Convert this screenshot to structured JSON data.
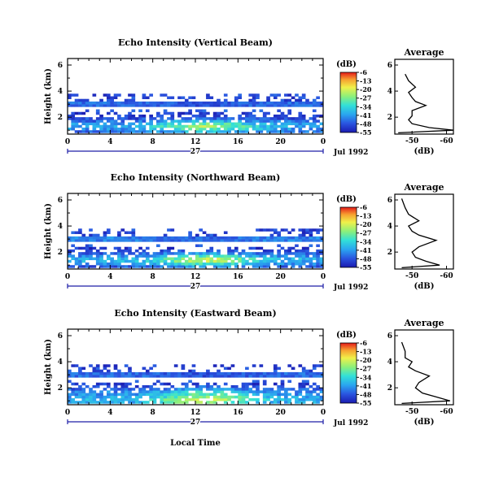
{
  "chart_data": {
    "type": "heatmap",
    "date_label": "Jul 1992",
    "xlabel_bottom": "Local Time",
    "day_label": "27",
    "x_ticks": [
      "0",
      "4",
      "8",
      "12",
      "16",
      "20",
      "0"
    ],
    "x_range": [
      0,
      24
    ],
    "y_ticks": [
      "2",
      "4",
      "6"
    ],
    "y_range": [
      0.7,
      6.5
    ],
    "ylabel": "Height (km)",
    "colorbar": {
      "unit_label": "(dB)",
      "ticks": [
        "-6",
        "-13",
        "-20",
        "-27",
        "-34",
        "-41",
        "-48",
        "-55"
      ],
      "range": [
        -55,
        -6
      ]
    },
    "profile": {
      "title": "Average",
      "xlabel": "(dB)",
      "x_ticks": [
        "-50",
        "-60"
      ],
      "y_ticks": [
        "2",
        "4",
        "6"
      ],
      "x_range": [
        -45,
        -62
      ]
    },
    "panels": [
      {
        "title": "Echo Intensity (Vertical Beam)",
        "layers": [
          {
            "height": 2.85,
            "level": -46
          },
          {
            "height": 1.2,
            "level": -30
          }
        ],
        "profile": [
          {
            "height": 0.8,
            "dB": -46
          },
          {
            "height": 1.0,
            "dB": -62
          },
          {
            "height": 1.2,
            "dB": -55
          },
          {
            "height": 1.5,
            "dB": -50
          },
          {
            "height": 1.8,
            "dB": -49
          },
          {
            "height": 2.1,
            "dB": -50
          },
          {
            "height": 2.5,
            "dB": -50
          },
          {
            "height": 2.9,
            "dB": -54
          },
          {
            "height": 3.2,
            "dB": -51
          },
          {
            "height": 3.5,
            "dB": -50
          },
          {
            "height": 3.9,
            "dB": -49
          },
          {
            "height": 4.3,
            "dB": -51
          },
          {
            "height": 4.8,
            "dB": -49
          },
          {
            "height": 5.3,
            "dB": -48
          }
        ]
      },
      {
        "title": "Echo Intensity (Northward Beam)",
        "layers": [
          {
            "height": 2.85,
            "level": -44
          },
          {
            "height": 1.3,
            "level": -28
          }
        ],
        "profile": [
          {
            "height": 0.8,
            "dB": -47
          },
          {
            "height": 1.0,
            "dB": -58
          },
          {
            "height": 1.3,
            "dB": -54
          },
          {
            "height": 1.6,
            "dB": -51
          },
          {
            "height": 2.0,
            "dB": -50
          },
          {
            "height": 2.4,
            "dB": -52
          },
          {
            "height": 2.9,
            "dB": -57
          },
          {
            "height": 3.3,
            "dB": -52
          },
          {
            "height": 3.6,
            "dB": -50
          },
          {
            "height": 4.0,
            "dB": -49
          },
          {
            "height": 4.4,
            "dB": -52
          },
          {
            "height": 4.9,
            "dB": -49
          },
          {
            "height": 5.4,
            "dB": -48
          },
          {
            "height": 6.1,
            "dB": -47
          }
        ]
      },
      {
        "title": "Echo Intensity (Eastward Beam)",
        "layers": [
          {
            "height": 2.85,
            "level": -46
          },
          {
            "height": 1.4,
            "level": -34
          },
          {
            "height": 1.0,
            "level": -27
          }
        ],
        "profile": [
          {
            "height": 0.8,
            "dB": -47
          },
          {
            "height": 1.0,
            "dB": -61
          },
          {
            "height": 1.3,
            "dB": -57
          },
          {
            "height": 1.6,
            "dB": -53
          },
          {
            "height": 2.0,
            "dB": -51
          },
          {
            "height": 2.4,
            "dB": -52
          },
          {
            "height": 2.9,
            "dB": -55
          },
          {
            "height": 3.3,
            "dB": -51
          },
          {
            "height": 3.6,
            "dB": -49
          },
          {
            "height": 4.0,
            "dB": -50
          },
          {
            "height": 4.3,
            "dB": -48
          },
          {
            "height": 4.8,
            "dB": -48
          },
          {
            "height": 5.5,
            "dB": -47
          }
        ]
      }
    ]
  }
}
